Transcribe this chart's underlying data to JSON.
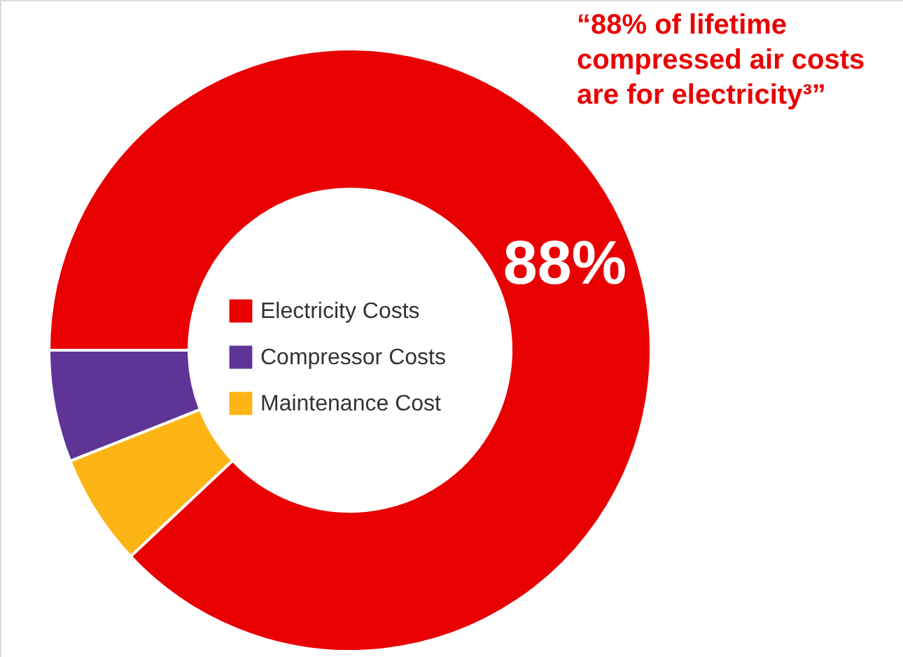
{
  "chart_data": {
    "type": "donut",
    "categories": [
      "Electricity Costs",
      "Compressor Costs",
      "Maintenance Cost"
    ],
    "values": [
      88,
      6,
      6
    ],
    "colors": [
      "#e90000",
      "#5e3596",
      "#fdb515"
    ],
    "value_labels": [
      "88%",
      null,
      null
    ],
    "legend": "center",
    "annotations": [
      "“88% of lifetime\ncompressed air costs\nare for electricity³”"
    ]
  }
}
